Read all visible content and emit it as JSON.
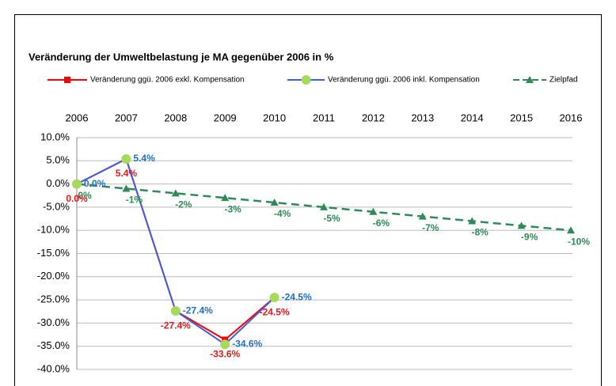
{
  "chart_data": {
    "type": "line",
    "title": "Veränderung der Umweltbelastung je MA gegenüber 2006 in %",
    "categories": [
      "2006",
      "2007",
      "2008",
      "2009",
      "2010",
      "2011",
      "2012",
      "2013",
      "2014",
      "2015",
      "2016"
    ],
    "series": [
      {
        "name": "Veränderung ggü. 2006 exkl. Kompensation",
        "color": "#ff0000",
        "marker": "square",
        "label_color": "#e31a1c",
        "values": [
          0,
          5.4,
          -27.4,
          -33.6,
          -24.5,
          null,
          null,
          null,
          null,
          null,
          null
        ],
        "value_labels": [
          "0.0%",
          "5.4%",
          "-27.4%",
          "-33.6%",
          "-24.5%",
          null,
          null,
          null,
          null,
          null,
          null
        ]
      },
      {
        "name": "Veränderung ggü. 2006 inkl. Kompensation",
        "color": "#3f5fe0",
        "marker": "circle",
        "marker_fill": "#a9d95a",
        "label_color": "#1f6fc5",
        "values": [
          0,
          5.4,
          -27.4,
          -34.6,
          -24.5,
          null,
          null,
          null,
          null,
          null,
          null
        ],
        "value_labels": [
          "0.0%",
          "5.4%",
          "-27.4%",
          "-34.6%",
          "-24.5%",
          null,
          null,
          null,
          null,
          null,
          null
        ]
      },
      {
        "name": "Zielpfad",
        "color": "#2e8b57",
        "marker": "triangle",
        "dashed": true,
        "label_color": "#2e8b57",
        "values": [
          0,
          -1,
          -2,
          -3,
          -4,
          -5,
          -6,
          -7,
          -8,
          -9,
          -10
        ],
        "value_labels": [
          "0%",
          "-1%",
          "-2%",
          "-3%",
          "-4%",
          "-5%",
          "-6%",
          "-7%",
          "-8%",
          "-9%",
          "-10%"
        ]
      }
    ],
    "ylim": [
      -40,
      10
    ],
    "yticks": [
      {
        "value": 10,
        "label": "10.0%"
      },
      {
        "value": 5,
        "label": "5.0%"
      },
      {
        "value": 0,
        "label": "0.0%"
      },
      {
        "value": -5,
        "label": "-5.0%"
      },
      {
        "value": -10,
        "label": "-10.0%"
      },
      {
        "value": -15,
        "label": "-15.0%"
      },
      {
        "value": -20,
        "label": "-20.0%"
      },
      {
        "value": -25,
        "label": "-25.0%"
      },
      {
        "value": -30,
        "label": "-30.0%"
      },
      {
        "value": -35,
        "label": "-35.0%"
      },
      {
        "value": -40,
        "label": "-40.0%"
      }
    ],
    "grid": true
  }
}
